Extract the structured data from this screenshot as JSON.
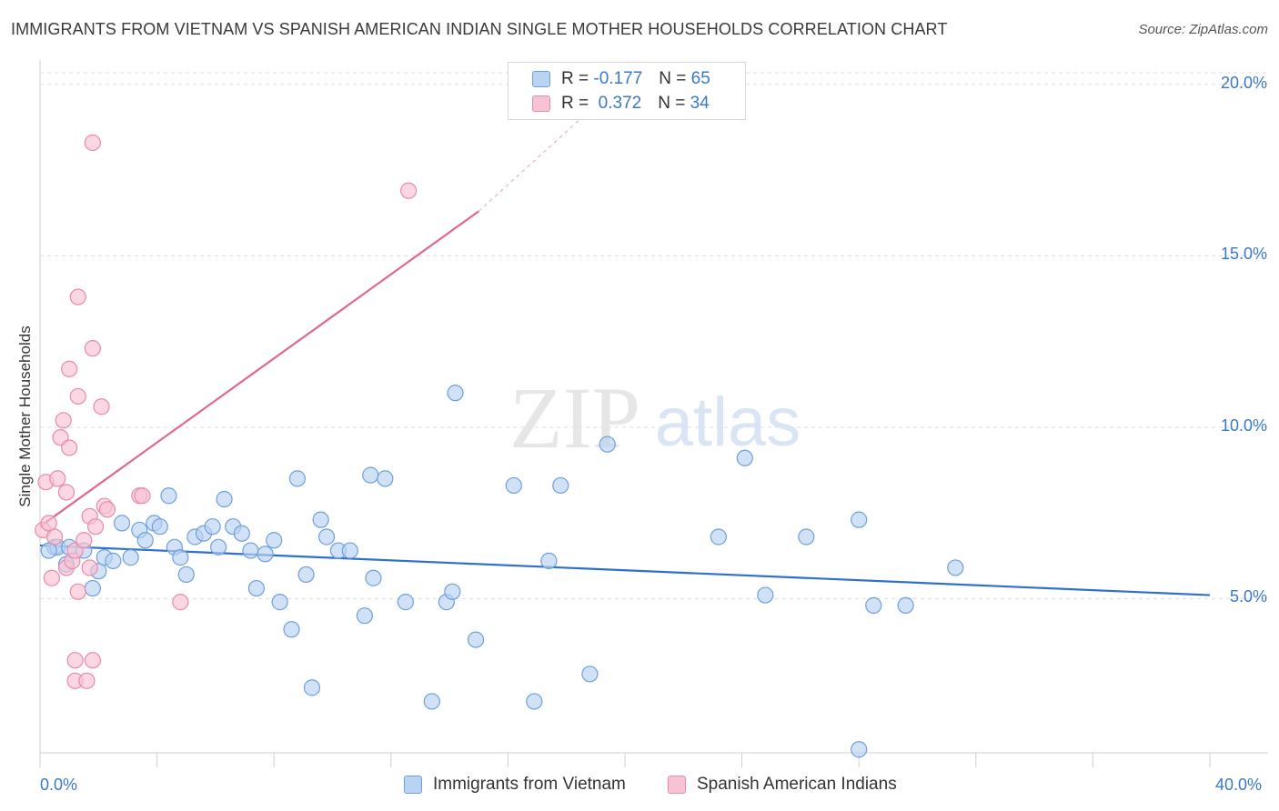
{
  "title": "IMMIGRANTS FROM VIETNAM VS SPANISH AMERICAN INDIAN SINGLE MOTHER HOUSEHOLDS CORRELATION CHART",
  "source": "Source: ZipAtlas.com",
  "watermark": {
    "zip": "ZIP",
    "atlas": "atlas"
  },
  "legend": {
    "rows": [
      {
        "r_label": "R =",
        "r_value": "-0.177",
        "n_label": "N =",
        "n_value": "65"
      },
      {
        "r_label": "R =",
        "r_value": " 0.372",
        "n_label": "N =",
        "n_value": "34"
      }
    ]
  },
  "colors": {
    "blue_fill": "#b9d3f3",
    "blue_stroke": "#6f9fdb",
    "blue_line": "#2f6fd0",
    "pink_fill": "#f7c2d3",
    "pink_stroke": "#e88aaa",
    "pink_line": "#e2678f",
    "grid": "#dcdcdc",
    "tick_text": "#3a78c8"
  },
  "chart_data": {
    "type": "scatter",
    "title": "IMMIGRANTS FROM VIETNAM VS SPANISH AMERICAN INDIAN SINGLE MOTHER HOUSEHOLDS CORRELATION CHART",
    "xlabel": "",
    "ylabel": "Single Mother Households",
    "xlim": [
      0,
      40
    ],
    "ylim": [
      0.5,
      20.5
    ],
    "x_tick_labels": [
      "0.0%",
      "40.0%"
    ],
    "y_ticks": [
      5,
      10,
      15,
      20
    ],
    "y_tick_labels": [
      "5.0%",
      "10.0%",
      "15.0%",
      "20.0%"
    ],
    "grid": true,
    "legend_position": "top-center",
    "series": [
      {
        "name": "Immigrants from Vietnam",
        "color": "#6f9fdb",
        "trend": {
          "x0": 0,
          "y0": 6.55,
          "x1": 40,
          "y1": 5.1
        },
        "points": [
          [
            0.5,
            6.5
          ],
          [
            0.6,
            6.5
          ],
          [
            0.9,
            6.0
          ],
          [
            1.0,
            6.5
          ],
          [
            1.5,
            6.4
          ],
          [
            1.8,
            5.3
          ],
          [
            2.0,
            5.8
          ],
          [
            2.2,
            6.2
          ],
          [
            2.5,
            6.1
          ],
          [
            2.8,
            7.2
          ],
          [
            3.1,
            6.2
          ],
          [
            3.4,
            7.0
          ],
          [
            3.6,
            6.7
          ],
          [
            3.9,
            7.2
          ],
          [
            4.1,
            7.1
          ],
          [
            4.4,
            8.0
          ],
          [
            4.6,
            6.5
          ],
          [
            4.8,
            6.2
          ],
          [
            5.0,
            5.7
          ],
          [
            5.3,
            6.8
          ],
          [
            5.6,
            6.9
          ],
          [
            5.9,
            7.1
          ],
          [
            6.1,
            6.5
          ],
          [
            6.3,
            7.9
          ],
          [
            6.6,
            7.1
          ],
          [
            6.9,
            6.9
          ],
          [
            7.2,
            6.4
          ],
          [
            7.4,
            5.3
          ],
          [
            7.7,
            6.3
          ],
          [
            8.0,
            6.7
          ],
          [
            8.2,
            4.9
          ],
          [
            8.6,
            4.1
          ],
          [
            8.8,
            8.5
          ],
          [
            9.1,
            5.7
          ],
          [
            9.3,
            2.4
          ],
          [
            9.6,
            7.3
          ],
          [
            9.8,
            6.8
          ],
          [
            10.2,
            6.4
          ],
          [
            10.6,
            6.4
          ],
          [
            11.1,
            4.5
          ],
          [
            11.3,
            8.6
          ],
          [
            11.4,
            5.6
          ],
          [
            11.8,
            8.5
          ],
          [
            12.5,
            4.9
          ],
          [
            13.4,
            2.0
          ],
          [
            13.9,
            4.9
          ],
          [
            14.1,
            5.2
          ],
          [
            14.2,
            11.0
          ],
          [
            14.9,
            3.8
          ],
          [
            16.2,
            8.3
          ],
          [
            16.9,
            2.0
          ],
          [
            17.4,
            6.1
          ],
          [
            17.8,
            8.3
          ],
          [
            18.8,
            2.8
          ],
          [
            19.4,
            9.5
          ],
          [
            23.2,
            6.8
          ],
          [
            24.1,
            9.1
          ],
          [
            24.8,
            5.1
          ],
          [
            26.2,
            6.8
          ],
          [
            28.0,
            7.3
          ],
          [
            28.5,
            4.8
          ],
          [
            28.0,
            0.6
          ],
          [
            29.6,
            4.8
          ],
          [
            31.3,
            5.9
          ],
          [
            0.3,
            6.4
          ]
        ]
      },
      {
        "name": "Spanish American Indians",
        "color": "#e88aaa",
        "trend": {
          "x0": 0,
          "y0": 7.1,
          "x1": 15,
          "y1": 16.3
        },
        "trend_dashed_to": {
          "x": 19,
          "y": 19.4
        },
        "points": [
          [
            0.1,
            7.0
          ],
          [
            0.2,
            8.4
          ],
          [
            0.3,
            7.2
          ],
          [
            0.4,
            5.6
          ],
          [
            0.6,
            8.5
          ],
          [
            0.7,
            9.7
          ],
          [
            0.8,
            10.2
          ],
          [
            0.9,
            8.1
          ],
          [
            0.9,
            5.9
          ],
          [
            1.0,
            9.4
          ],
          [
            1.1,
            6.1
          ],
          [
            1.0,
            11.7
          ],
          [
            1.2,
            3.2
          ],
          [
            1.2,
            2.6
          ],
          [
            1.2,
            6.4
          ],
          [
            1.3,
            10.9
          ],
          [
            1.3,
            5.2
          ],
          [
            1.3,
            13.8
          ],
          [
            1.6,
            2.6
          ],
          [
            1.7,
            7.4
          ],
          [
            1.7,
            5.9
          ],
          [
            1.8,
            12.3
          ],
          [
            1.8,
            3.2
          ],
          [
            1.9,
            7.1
          ],
          [
            2.1,
            10.6
          ],
          [
            2.2,
            7.7
          ],
          [
            2.3,
            7.6
          ],
          [
            1.8,
            18.3
          ],
          [
            3.4,
            8.0
          ],
          [
            3.5,
            8.0
          ],
          [
            4.8,
            4.9
          ],
          [
            12.6,
            16.9
          ],
          [
            0.5,
            6.8
          ],
          [
            1.5,
            6.7
          ]
        ]
      }
    ]
  },
  "bottom_legend": [
    "Immigrants from Vietnam",
    "Spanish American Indians"
  ]
}
